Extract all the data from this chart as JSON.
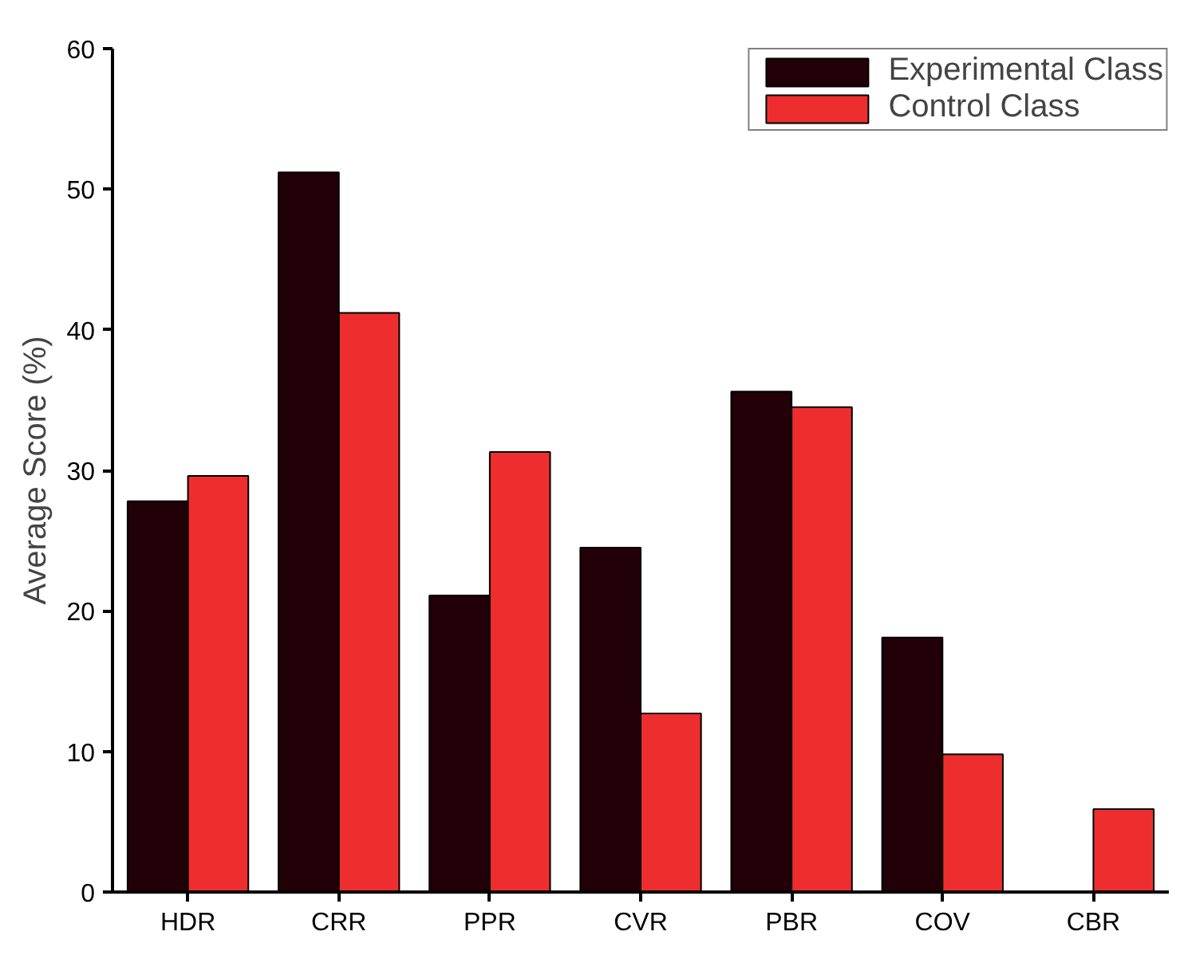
{
  "chart_data": {
    "type": "bar",
    "ylabel": "Average Score (%)",
    "categories": [
      "HDR",
      "CRR",
      "PPR",
      "CVR",
      "PBR",
      "COV",
      "CBR"
    ],
    "series": [
      {
        "name": "Experimental Class",
        "color": "#220008",
        "values": [
          27.8,
          51.2,
          21.1,
          24.5,
          35.6,
          18.1,
          null
        ]
      },
      {
        "name": "Control Class",
        "color": "#ee2e2e",
        "values": [
          29.6,
          41.2,
          31.3,
          12.7,
          34.5,
          9.8,
          5.9
        ]
      }
    ],
    "ylim": [
      0,
      60
    ],
    "yticks": [
      0,
      10,
      20,
      30,
      40,
      50,
      60
    ],
    "grid": false,
    "legend": "top right"
  }
}
